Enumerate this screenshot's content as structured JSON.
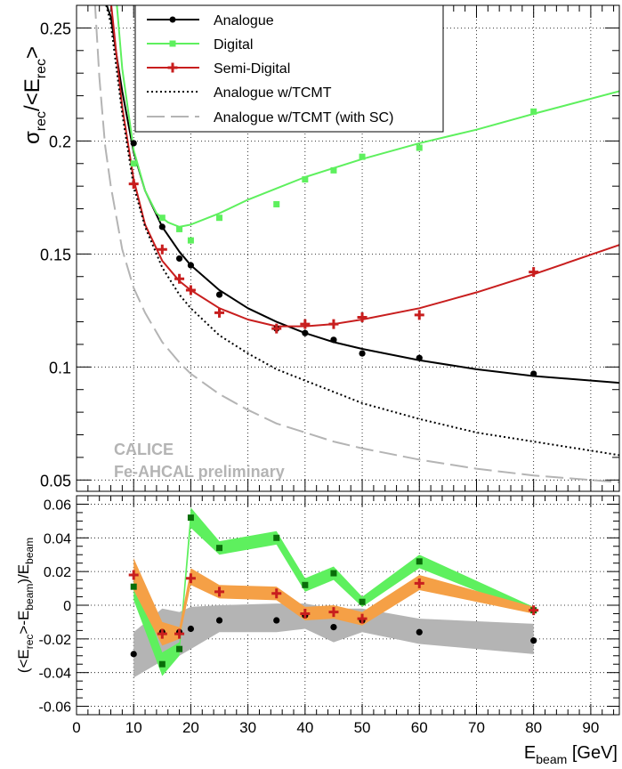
{
  "chart_data": [
    {
      "type": "scatter",
      "xlim": [
        0,
        95
      ],
      "ylim": [
        0.045,
        0.26
      ],
      "y_ticks": [
        "0.05",
        "0.1",
        "0.15",
        "0.2",
        "0.25"
      ],
      "ylabel_main": "σ",
      "ylabel_sub1": "rec",
      "ylabel_mid": "/<E",
      "ylabel_sub2": "rec",
      "ylabel_end": ">",
      "grid": true,
      "legend_position": "top",
      "annotation_line1": "CALICE",
      "annotation_line2": "Fe-AHCAL preliminary",
      "series": [
        {
          "name": "Analogue",
          "color": "#000000",
          "marker": "circle",
          "x": [
            10,
            15,
            18,
            20,
            25,
            35,
            40,
            45,
            50,
            60,
            80
          ],
          "y": [
            0.199,
            0.162,
            0.148,
            0.145,
            0.132,
            0.117,
            0.115,
            0.112,
            0.106,
            0.104,
            0.097
          ],
          "fit": {
            "x": [
              5,
              6,
              7,
              8,
              10,
              12,
              15,
              18,
              20,
              25,
              30,
              35,
              40,
              45,
              50,
              60,
              70,
              80,
              95
            ],
            "y": [
              0.262,
              0.255,
              0.238,
              0.222,
              0.195,
              0.178,
              0.162,
              0.151,
              0.145,
              0.134,
              0.126,
              0.12,
              0.115,
              0.111,
              0.108,
              0.103,
              0.099,
              0.096,
              0.093
            ]
          }
        },
        {
          "name": "Digital",
          "color": "#5ef05e",
          "marker": "square",
          "x": [
            10,
            15,
            18,
            20,
            25,
            35,
            40,
            45,
            50,
            60,
            80
          ],
          "y": [
            0.19,
            0.166,
            0.161,
            0.156,
            0.166,
            0.172,
            0.183,
            0.187,
            0.193,
            0.197,
            0.213
          ],
          "fit": {
            "x": [
              7,
              8,
              10,
              12,
              14,
              16,
              18,
              20,
              25,
              30,
              35,
              40,
              45,
              50,
              60,
              70,
              80,
              95
            ],
            "y": [
              0.262,
              0.232,
              0.196,
              0.178,
              0.168,
              0.164,
              0.162,
              0.163,
              0.168,
              0.174,
              0.179,
              0.184,
              0.188,
              0.192,
              0.199,
              0.205,
              0.212,
              0.222
            ]
          }
        },
        {
          "name": "Semi-Digital",
          "color": "#c81e1e",
          "marker": "plus",
          "x": [
            10,
            15,
            18,
            20,
            25,
            35,
            40,
            45,
            50,
            60,
            80
          ],
          "y": [
            0.181,
            0.152,
            0.139,
            0.134,
            0.124,
            0.117,
            0.119,
            0.119,
            0.122,
            0.123,
            0.142
          ],
          "fit": {
            "x": [
              6,
              7,
              8,
              10,
              12,
              15,
              18,
              20,
              25,
              30,
              35,
              40,
              45,
              50,
              60,
              70,
              80,
              95
            ],
            "y": [
              0.262,
              0.238,
              0.215,
              0.183,
              0.163,
              0.147,
              0.138,
              0.134,
              0.126,
              0.121,
              0.118,
              0.118,
              0.119,
              0.121,
              0.126,
              0.133,
              0.141,
              0.154
            ]
          }
        },
        {
          "name": "Analogue w/TCMT",
          "color": "#000000",
          "line_style": "dotted",
          "fit": {
            "x": [
              5,
              6,
              7,
              8,
              10,
              12,
              15,
              18,
              20,
              25,
              30,
              35,
              40,
              45,
              50,
              60,
              70,
              80,
              95
            ],
            "y": [
              0.262,
              0.252,
              0.232,
              0.212,
              0.18,
              0.162,
              0.144,
              0.132,
              0.126,
              0.114,
              0.106,
              0.099,
              0.094,
              0.089,
              0.084,
              0.077,
              0.071,
              0.067,
              0.061
            ]
          }
        },
        {
          "name": "Analogue w/TCMT (with SC)",
          "color": "#b4b4b4",
          "line_style": "dashed",
          "fit": {
            "x": [
              3.2,
              4,
              5,
              6,
              8,
              10,
              12,
              15,
              18,
              20,
              25,
              30,
              35,
              40,
              45,
              50,
              60,
              70,
              80,
              95
            ],
            "y": [
              0.262,
              0.228,
              0.198,
              0.18,
              0.152,
              0.135,
              0.124,
              0.111,
              0.102,
              0.097,
              0.088,
              0.081,
              0.075,
              0.071,
              0.067,
              0.064,
              0.059,
              0.055,
              0.052,
              0.049
            ]
          }
        }
      ]
    },
    {
      "type": "scatter",
      "xlim": [
        0,
        95
      ],
      "ylim": [
        -0.065,
        0.065
      ],
      "x_ticks": [
        "0",
        "10",
        "20",
        "30",
        "40",
        "50",
        "60",
        "70",
        "80",
        "90"
      ],
      "y_ticks": [
        "-0.06",
        "-0.04",
        "-0.02",
        "0",
        "0.02",
        "0.04",
        "0.06"
      ],
      "xlabel_main": "E",
      "xlabel_sub": "beam",
      "xlabel_unit": " [GeV]",
      "ylabel_a": "(<E",
      "ylabel_a_sub": "rec",
      "ylabel_b": ">-E",
      "ylabel_b_sub": "beam",
      "ylabel_c": ")/E",
      "ylabel_c_sub": "beam",
      "grid": true,
      "series": [
        {
          "name": "Analogue",
          "color": "#000000",
          "band_color": "#b4b4b4",
          "marker": "circle",
          "x": [
            10,
            15,
            18,
            20,
            25,
            35,
            40,
            45,
            50,
            60,
            80
          ],
          "y": [
            -0.029,
            -0.016,
            -0.016,
            -0.014,
            -0.009,
            -0.009,
            -0.006,
            -0.013,
            -0.009,
            -0.016,
            -0.021
          ],
          "band_lo": [
            -0.043,
            -0.033,
            -0.03,
            -0.026,
            -0.016,
            -0.016,
            -0.014,
            -0.022,
            -0.016,
            -0.023,
            -0.029
          ],
          "band_hi": [
            -0.016,
            -0.002,
            -0.004,
            -0.001,
            0.0,
            0.001,
            0.001,
            -0.002,
            -0.002,
            -0.008,
            -0.011
          ]
        },
        {
          "name": "Digital",
          "color": "#0a6e0a",
          "band_color": "#5ef05e",
          "marker": "square",
          "x": [
            10,
            15,
            18,
            20,
            25,
            35,
            40,
            45,
            50,
            60,
            80
          ],
          "y": [
            0.011,
            -0.035,
            -0.026,
            0.052,
            0.034,
            0.04,
            0.012,
            0.019,
            0.002,
            0.026,
            -0.003
          ],
          "band_lo": [
            0.003,
            -0.042,
            -0.03,
            0.046,
            0.03,
            0.036,
            0.008,
            0.015,
            -0.001,
            0.022,
            -0.005
          ],
          "band_hi": [
            0.019,
            -0.028,
            -0.022,
            0.058,
            0.038,
            0.044,
            0.016,
            0.023,
            0.005,
            0.03,
            -0.001
          ]
        },
        {
          "name": "Semi-Digital",
          "color": "#c81e1e",
          "band_color": "#f5a046",
          "marker": "plus",
          "x": [
            10,
            15,
            18,
            20,
            25,
            35,
            40,
            45,
            50,
            60,
            80
          ],
          "y": [
            0.018,
            -0.017,
            -0.017,
            0.016,
            0.008,
            0.007,
            -0.005,
            -0.004,
            -0.008,
            0.013,
            -0.003
          ],
          "band_lo": [
            0.009,
            -0.024,
            -0.02,
            0.012,
            0.004,
            0.003,
            -0.009,
            -0.008,
            -0.012,
            0.009,
            -0.005
          ],
          "band_hi": [
            0.028,
            -0.01,
            -0.013,
            0.022,
            0.012,
            0.011,
            -0.001,
            0.0,
            -0.004,
            0.018,
            -0.001
          ]
        }
      ]
    }
  ]
}
